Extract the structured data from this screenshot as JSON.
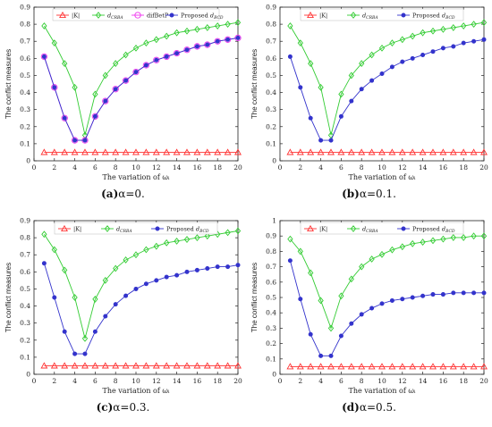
{
  "figures": [
    {
      "id": "a",
      "caption_letter": "(a)",
      "caption_text": "α=0.",
      "chart_data": {
        "type": "line",
        "ylabel": "The conflict measures",
        "xlabel": "The variation of ωᵢ",
        "xlim": [
          0,
          20
        ],
        "ylim": [
          0,
          0.9
        ],
        "xticks": [
          0,
          2,
          4,
          6,
          8,
          10,
          12,
          14,
          16,
          18,
          20
        ],
        "yticks": [
          0,
          0.1,
          0.2,
          0.3,
          0.4,
          0.5,
          0.6,
          0.7,
          0.8,
          0.9
        ],
        "ytick_labels": [
          "0",
          "0.1",
          "0.2",
          "0.3",
          "0.4",
          "0.5",
          "0.6",
          "0.7",
          "0.8",
          "0.9"
        ],
        "legend_position": "top",
        "x": [
          1,
          2,
          3,
          4,
          5,
          6,
          7,
          8,
          9,
          10,
          11,
          12,
          13,
          14,
          15,
          16,
          17,
          18,
          19,
          20
        ],
        "series": [
          {
            "name": "|K|",
            "color": "#ff3333",
            "marker": "triangle",
            "values": [
              0.05,
              0.05,
              0.05,
              0.05,
              0.05,
              0.05,
              0.05,
              0.05,
              0.05,
              0.05,
              0.05,
              0.05,
              0.05,
              0.05,
              0.05,
              0.05,
              0.05,
              0.05,
              0.05,
              0.05
            ]
          },
          {
            "name": "d_CRBA",
            "color": "#33cc33",
            "marker": "diamond",
            "values": [
              0.79,
              0.69,
              0.57,
              0.43,
              0.15,
              0.39,
              0.5,
              0.57,
              0.62,
              0.66,
              0.69,
              0.71,
              0.73,
              0.75,
              0.76,
              0.77,
              0.78,
              0.79,
              0.8,
              0.81
            ]
          },
          {
            "name": "difBetP",
            "color": "#ee33ee",
            "marker": "circle",
            "values": [
              0.61,
              0.43,
              0.25,
              0.12,
              0.12,
              0.26,
              0.35,
              0.42,
              0.47,
              0.52,
              0.56,
              0.59,
              0.61,
              0.63,
              0.65,
              0.67,
              0.68,
              0.7,
              0.71,
              0.72
            ]
          },
          {
            "name": "Proposed d_BCD",
            "color": "#3333cc",
            "marker": "star",
            "values": [
              0.61,
              0.43,
              0.25,
              0.12,
              0.12,
              0.26,
              0.35,
              0.42,
              0.47,
              0.52,
              0.56,
              0.59,
              0.61,
              0.63,
              0.65,
              0.67,
              0.68,
              0.7,
              0.71,
              0.72
            ]
          }
        ]
      }
    },
    {
      "id": "b",
      "caption_letter": "(b)",
      "caption_text": "α=0.1.",
      "chart_data": {
        "type": "line",
        "ylabel": "The conflict measures",
        "xlabel": "The variation of ωᵢ",
        "xlim": [
          0,
          20
        ],
        "ylim": [
          0,
          0.9
        ],
        "xticks": [
          0,
          2,
          4,
          6,
          8,
          10,
          12,
          14,
          16,
          18,
          20
        ],
        "yticks": [
          0,
          0.1,
          0.2,
          0.3,
          0.4,
          0.5,
          0.6,
          0.7,
          0.8,
          0.9
        ],
        "ytick_labels": [
          "0",
          "0.1",
          "0.2",
          "0.3",
          "0.4",
          "0.5",
          "0.6",
          "0.7",
          "0.8",
          "0.9"
        ],
        "legend_position": "top",
        "x": [
          1,
          2,
          3,
          4,
          5,
          6,
          7,
          8,
          9,
          10,
          11,
          12,
          13,
          14,
          15,
          16,
          17,
          18,
          19,
          20
        ],
        "series": [
          {
            "name": "|K|",
            "color": "#ff3333",
            "marker": "triangle",
            "values": [
              0.05,
              0.05,
              0.05,
              0.05,
              0.05,
              0.05,
              0.05,
              0.05,
              0.05,
              0.05,
              0.05,
              0.05,
              0.05,
              0.05,
              0.05,
              0.05,
              0.05,
              0.05,
              0.05,
              0.05
            ]
          },
          {
            "name": "d_CRBA",
            "color": "#33cc33",
            "marker": "diamond",
            "values": [
              0.79,
              0.69,
              0.57,
              0.43,
              0.15,
              0.39,
              0.5,
              0.57,
              0.62,
              0.66,
              0.69,
              0.71,
              0.73,
              0.75,
              0.76,
              0.77,
              0.78,
              0.79,
              0.8,
              0.81
            ]
          },
          {
            "name": "Proposed d_BCD",
            "color": "#3333cc",
            "marker": "star",
            "values": [
              0.61,
              0.43,
              0.25,
              0.12,
              0.12,
              0.26,
              0.35,
              0.42,
              0.47,
              0.51,
              0.55,
              0.58,
              0.6,
              0.62,
              0.64,
              0.66,
              0.67,
              0.69,
              0.7,
              0.71
            ]
          }
        ]
      }
    },
    {
      "id": "c",
      "caption_letter": "(c)",
      "caption_text": "α=0.3.",
      "chart_data": {
        "type": "line",
        "ylabel": "The conflict measures",
        "xlabel": "The variation of ωᵢ",
        "xlim": [
          0,
          20
        ],
        "ylim": [
          0,
          0.9
        ],
        "xticks": [
          0,
          2,
          4,
          6,
          8,
          10,
          12,
          14,
          16,
          18,
          20
        ],
        "yticks": [
          0,
          0.1,
          0.2,
          0.3,
          0.4,
          0.5,
          0.6,
          0.7,
          0.8,
          0.9
        ],
        "ytick_labels": [
          "0",
          "0.1",
          "0.2",
          "0.3",
          "0.4",
          "0.5",
          "0.6",
          "0.7",
          "0.8",
          "0.9"
        ],
        "legend_position": "top",
        "x": [
          1,
          2,
          3,
          4,
          5,
          6,
          7,
          8,
          9,
          10,
          11,
          12,
          13,
          14,
          15,
          16,
          17,
          18,
          19,
          20
        ],
        "series": [
          {
            "name": "|K|",
            "color": "#ff3333",
            "marker": "triangle",
            "values": [
              0.05,
              0.05,
              0.05,
              0.05,
              0.05,
              0.05,
              0.05,
              0.05,
              0.05,
              0.05,
              0.05,
              0.05,
              0.05,
              0.05,
              0.05,
              0.05,
              0.05,
              0.05,
              0.05,
              0.05
            ]
          },
          {
            "name": "d_CRBA",
            "color": "#33cc33",
            "marker": "diamond",
            "values": [
              0.82,
              0.73,
              0.61,
              0.45,
              0.21,
              0.44,
              0.55,
              0.62,
              0.67,
              0.7,
              0.73,
              0.75,
              0.77,
              0.78,
              0.79,
              0.8,
              0.81,
              0.82,
              0.83,
              0.84
            ]
          },
          {
            "name": "Proposed d_BCD",
            "color": "#3333cc",
            "marker": "star",
            "values": [
              0.65,
              0.45,
              0.25,
              0.12,
              0.12,
              0.25,
              0.34,
              0.41,
              0.46,
              0.5,
              0.53,
              0.55,
              0.57,
              0.58,
              0.6,
              0.61,
              0.62,
              0.63,
              0.63,
              0.64
            ]
          }
        ]
      }
    },
    {
      "id": "d",
      "caption_letter": "(d)",
      "caption_text": "α=0.5.",
      "chart_data": {
        "type": "line",
        "ylabel": "The conflict measures",
        "xlabel": "The variation of ωᵢ",
        "xlim": [
          0,
          20
        ],
        "ylim": [
          0,
          1
        ],
        "xticks": [
          0,
          2,
          4,
          6,
          8,
          10,
          12,
          14,
          16,
          18,
          20
        ],
        "yticks": [
          0,
          0.1,
          0.2,
          0.3,
          0.4,
          0.5,
          0.6,
          0.7,
          0.8,
          0.9,
          1
        ],
        "ytick_labels": [
          "0",
          "0.1",
          "0.2",
          "0.3",
          "0.4",
          "0.5",
          "0.6",
          "0.7",
          "0.8",
          "0.9",
          "1"
        ],
        "legend_position": "top",
        "x": [
          1,
          2,
          3,
          4,
          5,
          6,
          7,
          8,
          9,
          10,
          11,
          12,
          13,
          14,
          15,
          16,
          17,
          18,
          19,
          20
        ],
        "series": [
          {
            "name": "|K|",
            "color": "#ff3333",
            "marker": "triangle",
            "values": [
              0.05,
              0.05,
              0.05,
              0.05,
              0.05,
              0.05,
              0.05,
              0.05,
              0.05,
              0.05,
              0.05,
              0.05,
              0.05,
              0.05,
              0.05,
              0.05,
              0.05,
              0.05,
              0.05,
              0.05
            ]
          },
          {
            "name": "d_CRBA",
            "color": "#33cc33",
            "marker": "diamond",
            "values": [
              0.88,
              0.8,
              0.66,
              0.48,
              0.3,
              0.51,
              0.62,
              0.7,
              0.75,
              0.78,
              0.81,
              0.83,
              0.85,
              0.86,
              0.87,
              0.88,
              0.89,
              0.89,
              0.9,
              0.9
            ]
          },
          {
            "name": "Proposed d_BCD",
            "color": "#3333cc",
            "marker": "star",
            "values": [
              0.74,
              0.49,
              0.26,
              0.12,
              0.12,
              0.25,
              0.33,
              0.39,
              0.43,
              0.46,
              0.48,
              0.49,
              0.5,
              0.51,
              0.52,
              0.52,
              0.53,
              0.53,
              0.53,
              0.53
            ]
          }
        ]
      }
    }
  ]
}
